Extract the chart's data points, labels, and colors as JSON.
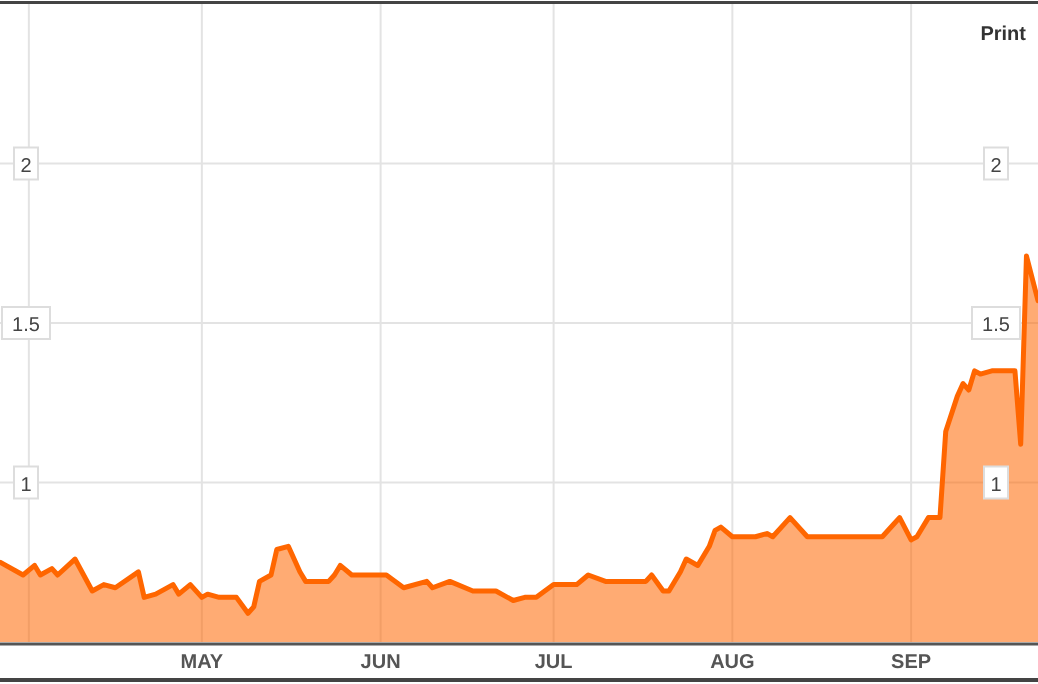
{
  "chart_data": {
    "type": "area",
    "annotations": [
      "Print"
    ],
    "x": [
      "--03-27",
      "--03-31",
      "--04-02",
      "--04-03",
      "--04-05",
      "--04-06",
      "--04-09",
      "--04-12",
      "--04-14",
      "--04-16",
      "--04-20",
      "--04-21",
      "--04-23",
      "--04-26",
      "--04-27",
      "--04-29",
      "--05-01",
      "--05-02",
      "--05-04",
      "--05-07",
      "--05-09",
      "--05-10",
      "--05-11",
      "--05-13",
      "--05-14",
      "--05-16",
      "--05-18",
      "--05-19",
      "--05-23",
      "--05-24",
      "--05-25",
      "--05-27",
      "--05-29",
      "--06-02",
      "--06-05",
      "--06-09",
      "--06-10",
      "--06-13",
      "--06-17",
      "--06-21",
      "--06-24",
      "--06-26",
      "--06-28",
      "--07-01",
      "--07-05",
      "--07-07",
      "--07-10",
      "--07-12",
      "--07-15",
      "--07-17",
      "--07-18",
      "--07-20",
      "--07-21",
      "--07-23",
      "--07-24",
      "--07-26",
      "--07-28",
      "--07-29",
      "--07-30",
      "--08-01",
      "--08-05",
      "--08-07",
      "--08-08",
      "--08-11",
      "--08-14",
      "--08-16",
      "--08-27",
      "--08-29",
      "--08-30",
      "--09-01",
      "--09-02",
      "--09-04",
      "--09-06",
      "--09-07",
      "--09-09",
      "--09-10",
      "--09-11",
      "--09-12",
      "--09-13",
      "--09-15",
      "--09-19",
      "--09-20",
      "--09-21",
      "--09-23"
    ],
    "series": [
      {
        "color": "#ff6600",
        "values": [
          0.75,
          0.71,
          0.74,
          0.71,
          0.73,
          0.71,
          0.76,
          0.66,
          0.68,
          0.67,
          0.72,
          0.64,
          0.65,
          0.68,
          0.65,
          0.68,
          0.64,
          0.65,
          0.64,
          0.64,
          0.59,
          0.61,
          0.69,
          0.71,
          0.79,
          0.8,
          0.72,
          0.69,
          0.69,
          0.71,
          0.74,
          0.71,
          0.71,
          0.71,
          0.67,
          0.69,
          0.67,
          0.69,
          0.66,
          0.66,
          0.63,
          0.64,
          0.64,
          0.68,
          0.68,
          0.71,
          0.69,
          0.69,
          0.69,
          0.69,
          0.71,
          0.66,
          0.66,
          0.72,
          0.76,
          0.74,
          0.8,
          0.85,
          0.86,
          0.83,
          0.83,
          0.84,
          0.83,
          0.89,
          0.83,
          0.83,
          0.83,
          0.87,
          0.89,
          0.82,
          0.83,
          0.89,
          0.89,
          1.16,
          1.27,
          1.31,
          1.29,
          1.35,
          1.34,
          1.35,
          1.35,
          1.12,
          1.71,
          1.57
        ]
      }
    ],
    "xlim": [
      "--03-27",
      "--09-23"
    ],
    "xticks": [
      {
        "value": "--04-01",
        "label": null
      },
      {
        "value": "--05-01",
        "label": "MAY"
      },
      {
        "value": "--06-01",
        "label": "JUN"
      },
      {
        "value": "--07-01",
        "label": "JUL"
      },
      {
        "value": "--08-01",
        "label": "AUG"
      },
      {
        "value": "--09-01",
        "label": "SEP"
      }
    ],
    "ylim": [
      0.5,
      2.5
    ],
    "yticks": [
      1,
      1.5,
      2
    ],
    "y2lim": [
      0.5,
      2.5
    ],
    "y2ticks": [
      1,
      1.5,
      2
    ],
    "grid": true
  }
}
